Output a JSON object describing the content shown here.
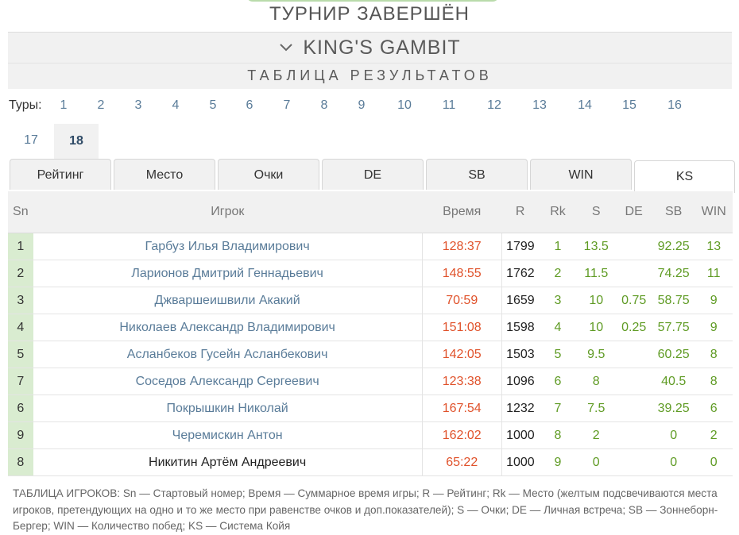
{
  "header": {
    "status": "ТУРНИР ЗАВЕРШЁН",
    "tournament_name": "KING'S GAMBIT",
    "section_title": "ТАБЛИЦА РЕЗУЛЬТАТОВ"
  },
  "rounds": {
    "label": "Туры:",
    "items": [
      "1",
      "2",
      "3",
      "4",
      "5",
      "6",
      "7",
      "8",
      "9",
      "10",
      "11",
      "12",
      "13",
      "14",
      "15",
      "16",
      "17",
      "18"
    ],
    "active": "18"
  },
  "tabs": [
    "Рейтинг",
    "Место",
    "Очки",
    "DE",
    "SB",
    "WIN",
    "KS"
  ],
  "active_tab": "KS",
  "table": {
    "columns": [
      "Sn",
      "Игрок",
      "Время",
      "R",
      "Rk",
      "S",
      "DE",
      "SB",
      "WIN"
    ],
    "rows": [
      {
        "sn": "1",
        "player": "Гарбуз Илья Владимирович",
        "time": "128:37",
        "r": "1799",
        "rk": "1",
        "s": "13.5",
        "de": "",
        "sb": "92.25",
        "win": "13"
      },
      {
        "sn": "2",
        "player": "Ларионов Дмитрий Геннадьевич",
        "time": "148:55",
        "r": "1762",
        "rk": "2",
        "s": "11.5",
        "de": "",
        "sb": "74.25",
        "win": "11"
      },
      {
        "sn": "3",
        "player": "Джваршеишвили Акакий",
        "time": "70:59",
        "r": "1659",
        "rk": "3",
        "s": "10",
        "de": "0.75",
        "sb": "58.75",
        "win": "9"
      },
      {
        "sn": "4",
        "player": "Николаев Александр Владимирович",
        "time": "151:08",
        "r": "1598",
        "rk": "4",
        "s": "10",
        "de": "0.25",
        "sb": "57.75",
        "win": "9"
      },
      {
        "sn": "5",
        "player": "Асланбеков Гусейн Асланбекович",
        "time": "142:05",
        "r": "1503",
        "rk": "5",
        "s": "9.5",
        "de": "",
        "sb": "60.25",
        "win": "8"
      },
      {
        "sn": "7",
        "player": "Соседов Александр Сергеевич",
        "time": "123:38",
        "r": "1096",
        "rk": "6",
        "s": "8",
        "de": "",
        "sb": "40.5",
        "win": "8"
      },
      {
        "sn": "6",
        "player": "Покрышкин Николай",
        "time": "167:54",
        "r": "1232",
        "rk": "7",
        "s": "7.5",
        "de": "",
        "sb": "39.25",
        "win": "6"
      },
      {
        "sn": "9",
        "player": "Черемискин Антон",
        "time": "162:02",
        "r": "1000",
        "rk": "8",
        "s": "2",
        "de": "",
        "sb": "0",
        "win": "2"
      },
      {
        "sn": "8",
        "player": "Никитин Артём Андреевич",
        "time": "65:22",
        "r": "1000",
        "rk": "9",
        "s": "0",
        "de": "",
        "sb": "0",
        "win": "0"
      }
    ]
  },
  "legend": "ТАБЛИЦА ИГРОКОВ: Sn — Стартовый номер; Время — Суммарное время игры; R — Рейтинг; Rk — Место (желтым подсвечиваются места игроков, претендующих на одно и то же место при равенстве очков и доп.показателей); S — Очки; DE — Личная встреча; SB — Зоннеборн-Бергер; WIN — Количество побед; KS — Система Койя",
  "colors": {
    "accent_green": "#b9dbab",
    "sn_cell": "#d9ecd0",
    "time_text": "#e0522b",
    "score_text": "#5f9b24",
    "link_text": "#5a7c99"
  }
}
